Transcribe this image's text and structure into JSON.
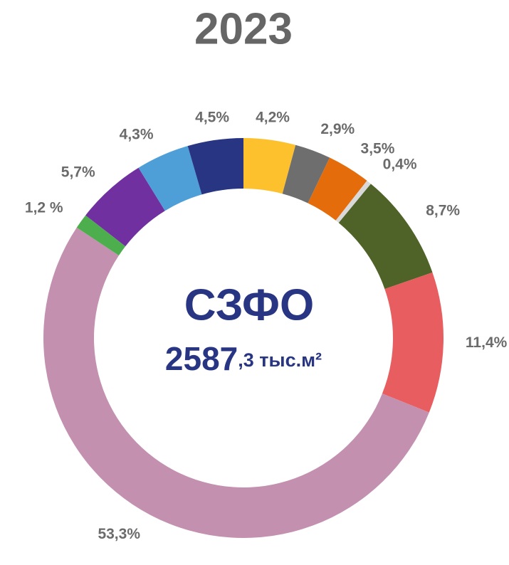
{
  "chart_data": {
    "type": "donut",
    "title": "2023",
    "center_label": "СЗФО",
    "total_parts": [
      "2587",
      ",3 тыс.м²"
    ],
    "values": [
      4.2,
      2.9,
      3.5,
      0.4,
      8.7,
      11.4,
      53.3,
      1.2,
      5.7,
      4.3,
      4.5
    ],
    "value_labels": [
      "4,2%",
      "2,9%",
      "3,5%",
      "0,4%",
      "8,7%",
      "11,4%",
      "53,3%",
      "1,2 %",
      "5,7%",
      "4,3%",
      "4,5%"
    ],
    "colors": [
      "#fcc12d",
      "#6e6e6e",
      "#e46c0a",
      "#d9d9d9",
      "#4f6228",
      "#e85d5f",
      "#c490b0",
      "#4cae4c",
      "#7030a0",
      "#4e9fd8",
      "#283582"
    ]
  }
}
